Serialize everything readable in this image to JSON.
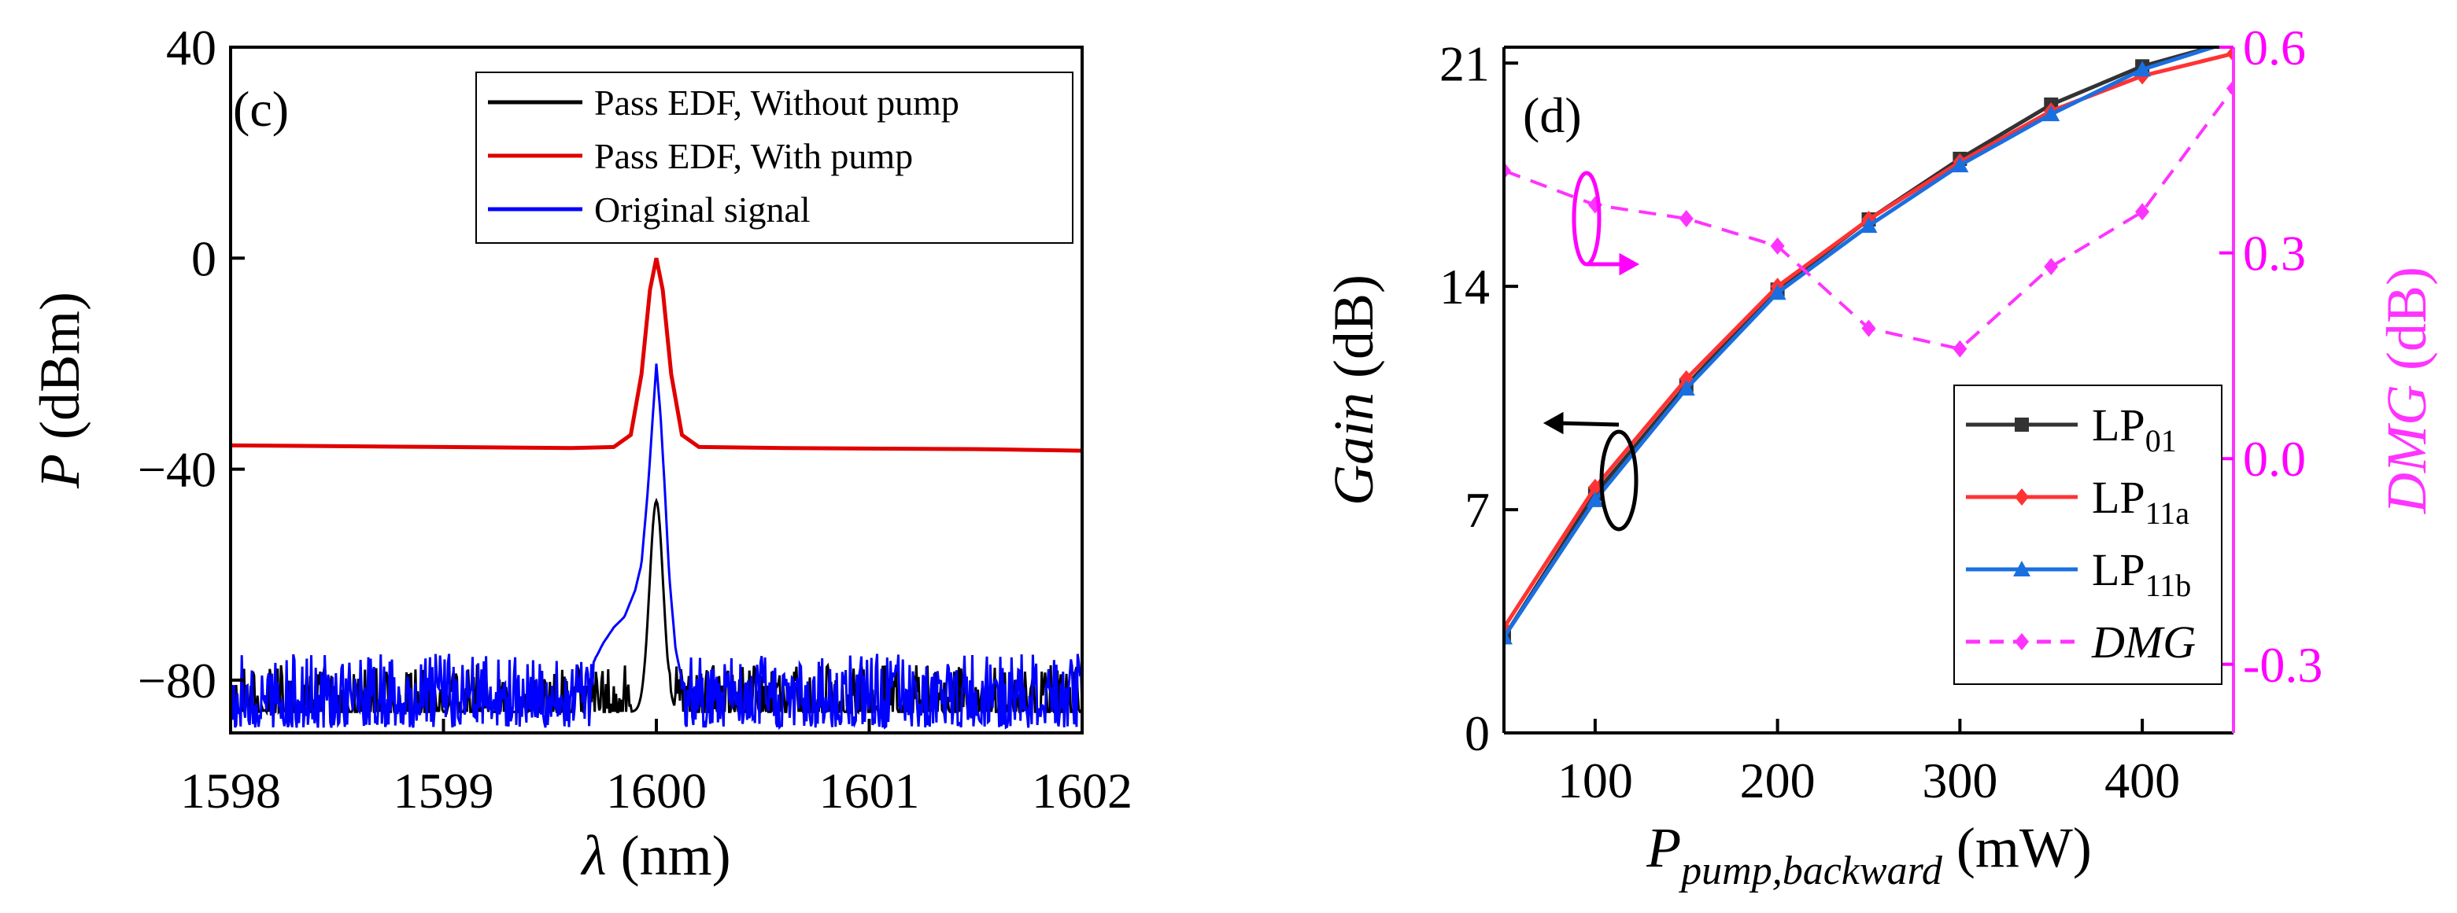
{
  "chart_data": [
    {
      "panel": "(c)",
      "type": "line",
      "xlabel_symbol": "λ",
      "xlabel_unit": " (nm)",
      "ylabel_symbol": "P",
      "ylabel_unit": " (dBm)",
      "xlim": [
        1598,
        1602
      ],
      "ylim": [
        -90,
        40
      ],
      "xticks": [
        1598,
        1599,
        1600,
        1601,
        1602
      ],
      "yticks": [
        40,
        0,
        -40,
        -80
      ],
      "ytick_labels": [
        "40",
        "0",
        "−40",
        "−80"
      ],
      "legend": {
        "position": "top-right",
        "entries": [
          {
            "label": "Pass EDF, Without pump",
            "color": "#000000"
          },
          {
            "label": "Pass EDF, With pump",
            "color": "#e00000"
          },
          {
            "label": "Original signal",
            "color": "#0000ff"
          }
        ]
      },
      "series": [
        {
          "name": "Pass EDF, Without pump",
          "color": "#000000",
          "noise_floor": [
            -89,
            -77
          ],
          "peak": {
            "center": 1600.0,
            "value": -46,
            "width": 0.045
          }
        },
        {
          "name": "Pass EDF, With pump",
          "color": "#e00000",
          "points": [
            [
              1598.0,
              -35.5
            ],
            [
              1599.0,
              -35.8
            ],
            [
              1599.6,
              -36.0
            ],
            [
              1599.8,
              -35.8
            ],
            [
              1599.88,
              -33.5
            ],
            [
              1599.93,
              -22
            ],
            [
              1599.97,
              -6
            ],
            [
              1600.0,
              0
            ],
            [
              1600.03,
              -6
            ],
            [
              1600.07,
              -22
            ],
            [
              1600.12,
              -33.5
            ],
            [
              1600.2,
              -35.8
            ],
            [
              1600.6,
              -36.0
            ],
            [
              1601.5,
              -36.2
            ],
            [
              1602.0,
              -36.5
            ]
          ]
        },
        {
          "name": "Original signal",
          "color": "#0000ff",
          "noise_floor": [
            -89,
            -75
          ],
          "points": [
            [
              1599.7,
              -77
            ],
            [
              1599.75,
              -73
            ],
            [
              1599.8,
              -70
            ],
            [
              1599.85,
              -68
            ],
            [
              1599.9,
              -63
            ],
            [
              1599.93,
              -58
            ],
            [
              1599.96,
              -44
            ],
            [
              1599.98,
              -32
            ],
            [
              1600.0,
              -20
            ],
            [
              1600.02,
              -30
            ],
            [
              1600.04,
              -44
            ],
            [
              1600.06,
              -60
            ],
            [
              1600.09,
              -74
            ],
            [
              1600.12,
              -80
            ]
          ]
        }
      ]
    },
    {
      "panel": "(d)",
      "type": "line",
      "xlabel_symbol": "P",
      "xlabel_subscript": "pump,backward",
      "xlabel_unit": " (mW)",
      "ylabel_symbol": "Gain",
      "ylabel_unit": " (dB)",
      "y2label_symbol": "DMG",
      "y2label_unit": " (dB)",
      "xlim": [
        50,
        450
      ],
      "ylim": [
        0,
        21.5
      ],
      "y2lim": [
        -0.4,
        0.6
      ],
      "xticks": [
        100,
        200,
        300,
        400
      ],
      "yticks": [
        0,
        7,
        14,
        21
      ],
      "y2ticks": [
        0.6,
        0.3,
        0.0,
        -0.3
      ],
      "y2tick_labels": [
        "0.6",
        "0.3",
        "0.0",
        "-0.3"
      ],
      "secondary_color": "#ff00ff",
      "legend": {
        "position": "bottom-right",
        "entries": [
          {
            "label": "LP",
            "sub": "01",
            "color": "#333333",
            "marker": "square"
          },
          {
            "label": "LP",
            "sub": "11a",
            "color": "#ff3333",
            "marker": "diamond"
          },
          {
            "label": "LP",
            "sub": "11b",
            "color": "#1a6fe0",
            "marker": "triangle"
          },
          {
            "label": "DMG",
            "sub": "",
            "color": "#ff33ff",
            "marker": "diamond",
            "dashed": true,
            "italic": true
          }
        ]
      },
      "x": [
        50,
        100,
        150,
        200,
        250,
        300,
        350,
        400,
        450
      ],
      "series": [
        {
          "name": "LP01",
          "axis": "left",
          "color": "#333333",
          "marker": "square",
          "values": [
            3.0,
            7.5,
            10.9,
            13.9,
            16.1,
            18.0,
            19.7,
            20.9,
            21.7
          ]
        },
        {
          "name": "LP11a",
          "axis": "left",
          "color": "#ff3333",
          "marker": "diamond",
          "values": [
            3.3,
            7.7,
            11.1,
            14.0,
            16.1,
            17.9,
            19.5,
            20.6,
            21.3
          ]
        },
        {
          "name": "LP11b",
          "axis": "left",
          "color": "#1a6fe0",
          "marker": "triangle",
          "values": [
            3.0,
            7.3,
            10.8,
            13.8,
            15.9,
            17.8,
            19.4,
            20.8,
            21.7
          ]
        },
        {
          "name": "DMG",
          "axis": "right",
          "color": "#ff33ff",
          "marker": "diamond",
          "dashed": true,
          "values": [
            0.42,
            0.37,
            0.35,
            0.31,
            0.19,
            0.16,
            0.28,
            0.36,
            0.54
          ]
        }
      ]
    }
  ]
}
